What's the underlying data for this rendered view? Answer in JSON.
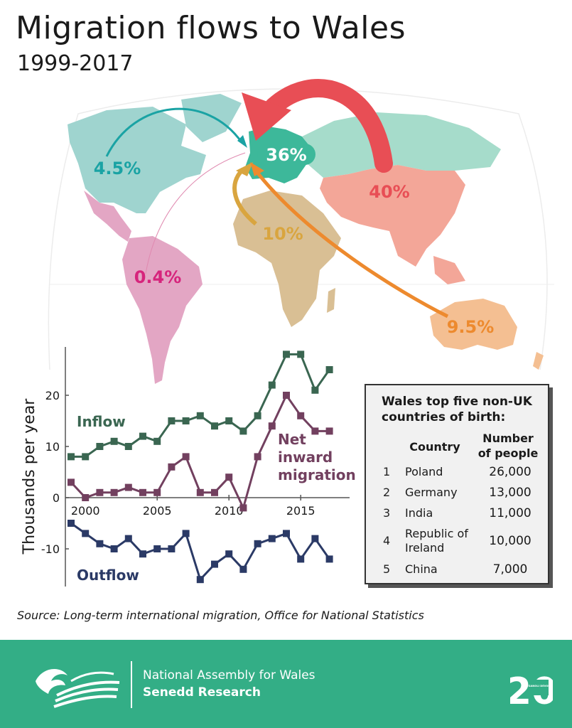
{
  "title": "Migration flows to Wales",
  "subtitle": "1999-2017",
  "map": {
    "flows": [
      {
        "region": "Europe",
        "share": "36%",
        "color": "#3db89a"
      },
      {
        "region": "Asia",
        "share": "40%",
        "color": "#e84e55"
      },
      {
        "region": "North America",
        "share": "4.5%",
        "color": "#1aa3a4"
      },
      {
        "region": "Africa",
        "share": "10%",
        "color": "#d9a53f"
      },
      {
        "region": "Oceania",
        "share": "9.5%",
        "color": "#ed8a2e"
      },
      {
        "region": "South America",
        "share": "0.4%",
        "color": "#d6247c"
      }
    ],
    "region_colors": {
      "north_america": "#9fd4cf",
      "south_america": "#e3a6c4",
      "central_america": "#e3a6c4",
      "europe": "#3db89a",
      "russia": "#a6dccb",
      "asia": "#f3a698",
      "africa": "#d9bf94",
      "oceania": "#f4bf92",
      "greenland": "#9fd4cf"
    }
  },
  "chart_data": {
    "type": "line",
    "x": [
      1999,
      2000,
      2001,
      2002,
      2003,
      2004,
      2005,
      2006,
      2007,
      2008,
      2009,
      2010,
      2011,
      2012,
      2013,
      2014,
      2015,
      2016,
      2017
    ],
    "series": [
      {
        "name": "Inflow",
        "color": "#3a6651",
        "values": [
          8,
          8,
          10,
          11,
          10,
          12,
          11,
          15,
          15,
          16,
          14,
          15,
          13,
          16,
          22,
          28,
          28,
          21,
          25
        ]
      },
      {
        "name": "Net inward migration",
        "color": "#72405f",
        "values": [
          3,
          0,
          1,
          1,
          2,
          1,
          1,
          6,
          8,
          1,
          1,
          4,
          -2,
          8,
          14,
          20,
          16,
          13,
          13
        ]
      },
      {
        "name": "Outflow",
        "color": "#2b3a66",
        "values": [
          -5,
          -7,
          -9,
          -10,
          -8,
          -11,
          -10,
          -10,
          -7,
          -16,
          -13,
          -11,
          -14,
          -9,
          -8,
          -7,
          -12,
          -8,
          -12
        ]
      }
    ],
    "series_labels": [
      "Inflow",
      "Net\ninward\nmigration",
      "Outflow"
    ],
    "ylabel": "Thousands per year",
    "xlabel": "",
    "x_ticks": [
      "2000",
      "2005",
      "2010",
      "2015"
    ],
    "y_ticks": [
      "20",
      "10",
      "0",
      "-10"
    ],
    "ylim": [
      -17,
      29
    ],
    "xlim": [
      1999,
      2018
    ]
  },
  "table": {
    "title": "Wales top five non-UK countries of birth:",
    "col_country": "Country",
    "col_number": "Number\nof people",
    "rows": [
      {
        "rank": "1",
        "country": "Poland",
        "count": "26,000"
      },
      {
        "rank": "2",
        "country": "Germany",
        "count": "13,000"
      },
      {
        "rank": "3",
        "country": "India",
        "count": "11,000"
      },
      {
        "rank": "4",
        "country": "Republic of Ireland",
        "count": "10,000"
      },
      {
        "rank": "5",
        "country": "China",
        "count": "7,000"
      }
    ]
  },
  "source": "Source: Long-term international migration, Office for National Statistics",
  "footer": {
    "org_name": "National Assembly for Wales",
    "org_sub": "Senedd Research",
    "badge_number": "20",
    "badge_text": "DATGANOLI DEVOLUTION",
    "color": "#33ae86"
  }
}
